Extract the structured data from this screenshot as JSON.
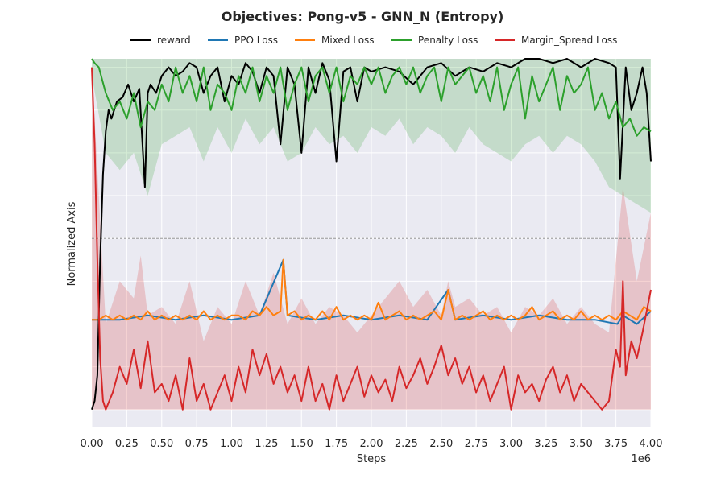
{
  "chart_data": {
    "type": "line",
    "title": "Objectives: Pong-v5 - GNN_N (Entropy)",
    "xlabel": "Steps",
    "ylabel": "Normalized Axis",
    "x_offset_label": "1e6",
    "xlim": [
      0,
      4.0
    ],
    "ylim": [
      -0.04,
      0.82
    ],
    "grid": true,
    "legend_position": "top",
    "background_color": "#eaeaf2",
    "midline": 0.4,
    "x_ticks": [
      "0.00",
      "0.25",
      "0.50",
      "0.75",
      "1.00",
      "1.25",
      "1.50",
      "1.75",
      "2.00",
      "2.25",
      "2.50",
      "2.75",
      "3.00",
      "3.25",
      "3.50",
      "3.75",
      "4.00"
    ],
    "x_tick_values": [
      0,
      0.25,
      0.5,
      0.75,
      1.0,
      1.25,
      1.5,
      1.75,
      2.0,
      2.25,
      2.5,
      2.75,
      3.0,
      3.25,
      3.5,
      3.75,
      4.0
    ],
    "series": [
      {
        "name": "reward",
        "color": "#000000",
        "x": [
          0,
          0.02,
          0.04,
          0.06,
          0.08,
          0.1,
          0.12,
          0.14,
          0.18,
          0.22,
          0.26,
          0.3,
          0.34,
          0.38,
          0.4,
          0.42,
          0.46,
          0.5,
          0.55,
          0.6,
          0.65,
          0.7,
          0.75,
          0.8,
          0.85,
          0.9,
          0.95,
          1.0,
          1.05,
          1.1,
          1.15,
          1.2,
          1.25,
          1.3,
          1.35,
          1.4,
          1.45,
          1.5,
          1.55,
          1.6,
          1.65,
          1.7,
          1.75,
          1.8,
          1.85,
          1.9,
          1.95,
          2.0,
          2.1,
          2.2,
          2.3,
          2.4,
          2.5,
          2.6,
          2.7,
          2.8,
          2.9,
          3.0,
          3.1,
          3.2,
          3.3,
          3.4,
          3.5,
          3.6,
          3.7,
          3.75,
          3.78,
          3.82,
          3.86,
          3.9,
          3.94,
          3.97,
          4.0
        ],
        "values": [
          0.0,
          0.02,
          0.08,
          0.35,
          0.55,
          0.65,
          0.7,
          0.68,
          0.72,
          0.73,
          0.76,
          0.72,
          0.75,
          0.52,
          0.74,
          0.76,
          0.74,
          0.78,
          0.8,
          0.78,
          0.79,
          0.81,
          0.8,
          0.74,
          0.78,
          0.8,
          0.72,
          0.78,
          0.76,
          0.81,
          0.79,
          0.74,
          0.8,
          0.78,
          0.62,
          0.8,
          0.76,
          0.6,
          0.8,
          0.74,
          0.81,
          0.77,
          0.58,
          0.79,
          0.8,
          0.72,
          0.8,
          0.79,
          0.8,
          0.79,
          0.76,
          0.8,
          0.81,
          0.78,
          0.8,
          0.79,
          0.81,
          0.8,
          0.82,
          0.82,
          0.81,
          0.82,
          0.8,
          0.82,
          0.81,
          0.8,
          0.54,
          0.8,
          0.7,
          0.74,
          0.8,
          0.74,
          0.58
        ]
      },
      {
        "name": "PPO Loss",
        "color": "#1f77b4",
        "x": [
          0,
          0.2,
          0.4,
          0.6,
          0.8,
          1.0,
          1.2,
          1.37,
          1.4,
          1.6,
          1.8,
          2.0,
          2.2,
          2.4,
          2.55,
          2.6,
          2.8,
          3.0,
          3.2,
          3.4,
          3.6,
          3.76,
          3.8,
          3.9,
          4.0
        ],
        "values": [
          0.21,
          0.21,
          0.22,
          0.21,
          0.22,
          0.21,
          0.22,
          0.35,
          0.22,
          0.21,
          0.22,
          0.21,
          0.22,
          0.21,
          0.28,
          0.21,
          0.22,
          0.21,
          0.22,
          0.21,
          0.21,
          0.2,
          0.22,
          0.2,
          0.23
        ]
      },
      {
        "name": "Mixed Loss",
        "color": "#ff7f0e",
        "x": [
          0,
          0.05,
          0.1,
          0.15,
          0.2,
          0.25,
          0.3,
          0.35,
          0.4,
          0.45,
          0.5,
          0.55,
          0.6,
          0.65,
          0.7,
          0.75,
          0.8,
          0.85,
          0.9,
          0.95,
          1.0,
          1.05,
          1.1,
          1.15,
          1.2,
          1.25,
          1.3,
          1.35,
          1.37,
          1.4,
          1.45,
          1.5,
          1.55,
          1.6,
          1.65,
          1.7,
          1.75,
          1.8,
          1.85,
          1.9,
          1.95,
          2.0,
          2.05,
          2.1,
          2.15,
          2.2,
          2.25,
          2.3,
          2.35,
          2.4,
          2.45,
          2.5,
          2.55,
          2.6,
          2.65,
          2.7,
          2.75,
          2.8,
          2.85,
          2.9,
          2.95,
          3.0,
          3.05,
          3.1,
          3.15,
          3.2,
          3.25,
          3.3,
          3.35,
          3.4,
          3.45,
          3.5,
          3.55,
          3.6,
          3.65,
          3.7,
          3.75,
          3.8,
          3.85,
          3.9,
          3.95,
          4.0
        ],
        "values": [
          0.21,
          0.21,
          0.22,
          0.21,
          0.22,
          0.21,
          0.22,
          0.21,
          0.23,
          0.21,
          0.22,
          0.21,
          0.22,
          0.21,
          0.22,
          0.21,
          0.23,
          0.21,
          0.22,
          0.21,
          0.22,
          0.22,
          0.21,
          0.23,
          0.22,
          0.24,
          0.22,
          0.23,
          0.35,
          0.22,
          0.23,
          0.21,
          0.22,
          0.21,
          0.23,
          0.21,
          0.24,
          0.21,
          0.22,
          0.21,
          0.22,
          0.21,
          0.25,
          0.21,
          0.22,
          0.23,
          0.21,
          0.22,
          0.21,
          0.22,
          0.23,
          0.21,
          0.28,
          0.21,
          0.22,
          0.21,
          0.22,
          0.23,
          0.21,
          0.22,
          0.21,
          0.22,
          0.21,
          0.22,
          0.24,
          0.21,
          0.22,
          0.23,
          0.21,
          0.22,
          0.21,
          0.23,
          0.21,
          0.22,
          0.21,
          0.22,
          0.21,
          0.23,
          0.22,
          0.21,
          0.24,
          0.23
        ]
      },
      {
        "name": "Penalty Loss",
        "color": "#2ca02c",
        "x": [
          0,
          0.02,
          0.05,
          0.1,
          0.15,
          0.2,
          0.25,
          0.3,
          0.35,
          0.4,
          0.45,
          0.5,
          0.55,
          0.6,
          0.65,
          0.7,
          0.75,
          0.8,
          0.85,
          0.9,
          0.95,
          1.0,
          1.05,
          1.1,
          1.15,
          1.2,
          1.25,
          1.3,
          1.35,
          1.4,
          1.45,
          1.5,
          1.55,
          1.6,
          1.65,
          1.7,
          1.75,
          1.8,
          1.85,
          1.9,
          1.95,
          2.0,
          2.05,
          2.1,
          2.15,
          2.2,
          2.25,
          2.3,
          2.35,
          2.4,
          2.45,
          2.5,
          2.55,
          2.6,
          2.65,
          2.7,
          2.75,
          2.8,
          2.85,
          2.9,
          2.95,
          3.0,
          3.05,
          3.1,
          3.15,
          3.2,
          3.25,
          3.3,
          3.35,
          3.4,
          3.45,
          3.5,
          3.55,
          3.6,
          3.65,
          3.7,
          3.75,
          3.8,
          3.85,
          3.9,
          3.95,
          4.0
        ],
        "values": [
          0.82,
          0.81,
          0.8,
          0.74,
          0.7,
          0.72,
          0.68,
          0.74,
          0.66,
          0.72,
          0.7,
          0.76,
          0.72,
          0.8,
          0.74,
          0.78,
          0.72,
          0.8,
          0.7,
          0.76,
          0.74,
          0.7,
          0.78,
          0.74,
          0.8,
          0.72,
          0.78,
          0.74,
          0.8,
          0.7,
          0.76,
          0.8,
          0.72,
          0.78,
          0.8,
          0.74,
          0.8,
          0.72,
          0.78,
          0.76,
          0.8,
          0.76,
          0.8,
          0.74,
          0.78,
          0.8,
          0.76,
          0.8,
          0.74,
          0.78,
          0.8,
          0.72,
          0.8,
          0.76,
          0.78,
          0.8,
          0.74,
          0.78,
          0.72,
          0.8,
          0.7,
          0.76,
          0.8,
          0.68,
          0.78,
          0.72,
          0.76,
          0.8,
          0.7,
          0.78,
          0.74,
          0.76,
          0.8,
          0.7,
          0.74,
          0.68,
          0.72,
          0.66,
          0.68,
          0.64,
          0.66,
          0.65
        ]
      },
      {
        "name": "Margin_Spread Loss",
        "color": "#d62728",
        "x": [
          0,
          0.02,
          0.04,
          0.06,
          0.08,
          0.1,
          0.15,
          0.2,
          0.25,
          0.3,
          0.35,
          0.4,
          0.45,
          0.5,
          0.55,
          0.6,
          0.65,
          0.7,
          0.75,
          0.8,
          0.85,
          0.9,
          0.95,
          1.0,
          1.05,
          1.1,
          1.15,
          1.2,
          1.25,
          1.3,
          1.35,
          1.4,
          1.45,
          1.5,
          1.55,
          1.6,
          1.65,
          1.7,
          1.75,
          1.8,
          1.85,
          1.9,
          1.95,
          2.0,
          2.05,
          2.1,
          2.15,
          2.2,
          2.25,
          2.3,
          2.35,
          2.4,
          2.45,
          2.5,
          2.55,
          2.6,
          2.65,
          2.7,
          2.75,
          2.8,
          2.85,
          2.9,
          2.95,
          3.0,
          3.05,
          3.1,
          3.15,
          3.2,
          3.25,
          3.3,
          3.35,
          3.4,
          3.45,
          3.5,
          3.55,
          3.6,
          3.65,
          3.7,
          3.75,
          3.78,
          3.8,
          3.82,
          3.86,
          3.9,
          3.94,
          4.0
        ],
        "values": [
          0.8,
          0.62,
          0.35,
          0.12,
          0.02,
          0.0,
          0.04,
          0.1,
          0.06,
          0.14,
          0.05,
          0.16,
          0.04,
          0.06,
          0.02,
          0.08,
          0.0,
          0.12,
          0.02,
          0.06,
          0.0,
          0.04,
          0.08,
          0.02,
          0.1,
          0.04,
          0.14,
          0.08,
          0.13,
          0.06,
          0.1,
          0.04,
          0.08,
          0.02,
          0.1,
          0.02,
          0.06,
          0.0,
          0.08,
          0.02,
          0.06,
          0.1,
          0.03,
          0.08,
          0.04,
          0.07,
          0.02,
          0.1,
          0.05,
          0.08,
          0.12,
          0.06,
          0.1,
          0.15,
          0.08,
          0.12,
          0.06,
          0.1,
          0.04,
          0.08,
          0.02,
          0.06,
          0.1,
          0.0,
          0.08,
          0.04,
          0.06,
          0.02,
          0.07,
          0.1,
          0.04,
          0.08,
          0.02,
          0.06,
          0.04,
          0.02,
          0.0,
          0.02,
          0.14,
          0.1,
          0.3,
          0.08,
          0.16,
          0.12,
          0.18,
          0.28
        ]
      }
    ],
    "bands": [
      {
        "series": "Penalty Loss",
        "color": "#2ca02c",
        "x": [
          0,
          0.1,
          0.2,
          0.3,
          0.4,
          0.5,
          0.6,
          0.7,
          0.8,
          0.9,
          1.0,
          1.1,
          1.2,
          1.3,
          1.4,
          1.5,
          1.6,
          1.7,
          1.8,
          1.9,
          2.0,
          2.1,
          2.2,
          2.3,
          2.4,
          2.5,
          2.6,
          2.7,
          2.8,
          2.9,
          3.0,
          3.1,
          3.2,
          3.3,
          3.4,
          3.5,
          3.6,
          3.7,
          3.8,
          3.9,
          4.0
        ],
        "low": [
          0.78,
          0.6,
          0.56,
          0.6,
          0.5,
          0.62,
          0.64,
          0.66,
          0.58,
          0.66,
          0.6,
          0.68,
          0.62,
          0.66,
          0.58,
          0.6,
          0.66,
          0.62,
          0.64,
          0.6,
          0.66,
          0.64,
          0.68,
          0.62,
          0.66,
          0.64,
          0.6,
          0.66,
          0.62,
          0.6,
          0.58,
          0.62,
          0.64,
          0.6,
          0.64,
          0.62,
          0.58,
          0.52,
          0.5,
          0.48,
          0.46
        ],
        "high": [
          0.82,
          0.82,
          0.82,
          0.82,
          0.82,
          0.82,
          0.82,
          0.82,
          0.82,
          0.82,
          0.82,
          0.82,
          0.82,
          0.82,
          0.82,
          0.82,
          0.82,
          0.82,
          0.82,
          0.82,
          0.82,
          0.82,
          0.82,
          0.82,
          0.82,
          0.82,
          0.82,
          0.82,
          0.82,
          0.82,
          0.82,
          0.82,
          0.82,
          0.82,
          0.82,
          0.82,
          0.82,
          0.82,
          0.82,
          0.82,
          0.82
        ]
      },
      {
        "series": "Margin_Spread Loss",
        "color": "#d62728",
        "x": [
          0,
          0.1,
          0.2,
          0.3,
          0.35,
          0.4,
          0.5,
          0.6,
          0.7,
          0.8,
          0.9,
          1.0,
          1.1,
          1.2,
          1.3,
          1.4,
          1.5,
          1.6,
          1.7,
          1.8,
          1.9,
          2.0,
          2.1,
          2.2,
          2.3,
          2.4,
          2.5,
          2.55,
          2.6,
          2.7,
          2.8,
          2.9,
          3.0,
          3.1,
          3.2,
          3.3,
          3.4,
          3.5,
          3.6,
          3.7,
          3.8,
          3.9,
          4.0
        ],
        "low": [
          0.0,
          0.0,
          0.0,
          0.0,
          0.0,
          0.0,
          0.0,
          0.0,
          0.0,
          0.0,
          0.0,
          0.0,
          0.0,
          0.0,
          0.0,
          0.0,
          0.0,
          0.0,
          0.0,
          0.0,
          0.0,
          0.0,
          0.0,
          0.0,
          0.0,
          0.0,
          0.0,
          0.0,
          0.0,
          0.0,
          0.0,
          0.0,
          0.0,
          0.0,
          0.0,
          0.0,
          0.0,
          0.0,
          0.0,
          0.0,
          0.0,
          0.0,
          0.0
        ],
        "high": [
          0.8,
          0.2,
          0.3,
          0.26,
          0.36,
          0.22,
          0.24,
          0.2,
          0.3,
          0.16,
          0.24,
          0.2,
          0.3,
          0.22,
          0.32,
          0.2,
          0.26,
          0.2,
          0.24,
          0.22,
          0.18,
          0.22,
          0.26,
          0.3,
          0.24,
          0.28,
          0.22,
          0.3,
          0.24,
          0.26,
          0.22,
          0.24,
          0.18,
          0.24,
          0.22,
          0.26,
          0.2,
          0.24,
          0.2,
          0.18,
          0.52,
          0.3,
          0.46
        ]
      }
    ]
  }
}
